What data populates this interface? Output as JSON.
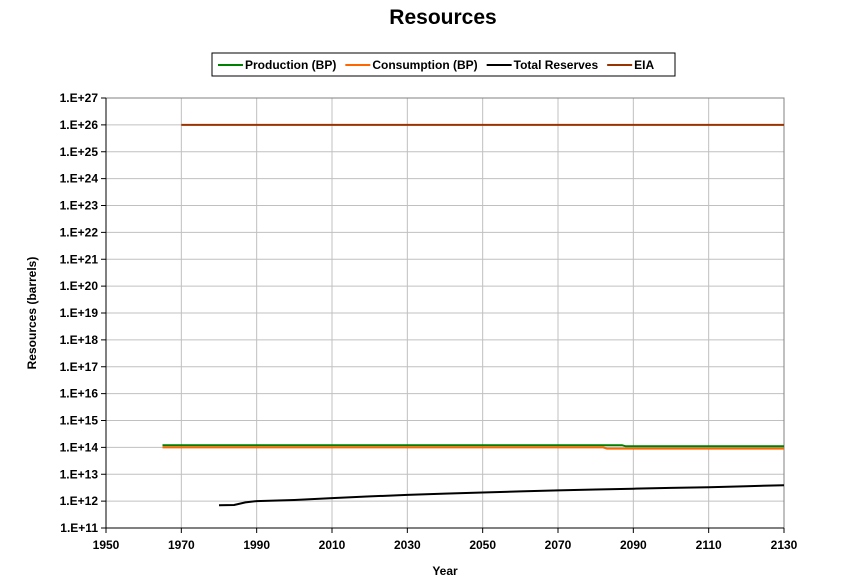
{
  "chart_data": {
    "type": "line",
    "title": "Resources",
    "xlabel": "Year",
    "ylabel": "Resources (barrels)",
    "x_ticks": [
      "1950",
      "1970",
      "1990",
      "2010",
      "2030",
      "2050",
      "2070",
      "2090",
      "2110",
      "2130"
    ],
    "xlim": [
      1950,
      2130
    ],
    "y_scale": "log",
    "ylim": [
      100000000000.0,
      1e+27
    ],
    "y_ticks": [
      "1.E+11",
      "1.E+12",
      "1.E+13",
      "1.E+14",
      "1.E+15",
      "1.E+16",
      "1.E+17",
      "1.E+18",
      "1.E+19",
      "1.E+20",
      "1.E+21",
      "1.E+22",
      "1.E+23",
      "1.E+24",
      "1.E+25",
      "1.E+26",
      "1.E+27"
    ],
    "grid": true,
    "legend_position": "top-center",
    "series": [
      {
        "name": "Production (BP)",
        "color": "#008000",
        "points": [
          [
            1965,
            120000000000000.0
          ],
          [
            2087,
            120000000000000.0
          ],
          [
            2088,
            110000000000000.0
          ],
          [
            2130,
            110000000000000.0
          ]
        ]
      },
      {
        "name": "Consumption (BP)",
        "color": "#ff6600",
        "points": [
          [
            1965,
            100000000000000.0
          ],
          [
            2082,
            100000000000000.0
          ],
          [
            2083,
            90000000000000.0
          ],
          [
            2130,
            90000000000000.0
          ]
        ]
      },
      {
        "name": "Total Reserves",
        "color": "#000000",
        "points": [
          [
            1980,
            700000000000.0
          ],
          [
            1984,
            720000000000.0
          ],
          [
            1987,
            900000000000.0
          ],
          [
            1990,
            1000000000000.0
          ],
          [
            2000,
            1100000000000.0
          ],
          [
            2010,
            1300000000000.0
          ],
          [
            2020,
            1500000000000.0
          ],
          [
            2030,
            1700000000000.0
          ],
          [
            2040,
            1900000000000.0
          ],
          [
            2050,
            2100000000000.0
          ],
          [
            2060,
            2300000000000.0
          ],
          [
            2070,
            2500000000000.0
          ],
          [
            2080,
            2700000000000.0
          ],
          [
            2090,
            2900000000000.0
          ],
          [
            2100,
            3100000000000.0
          ],
          [
            2110,
            3300000000000.0
          ],
          [
            2120,
            3600000000000.0
          ],
          [
            2130,
            3900000000000.0
          ]
        ]
      },
      {
        "name": "EIA",
        "color": "#993300",
        "points": [
          [
            1970,
            1e+26
          ],
          [
            2130,
            1e+26
          ]
        ]
      }
    ]
  }
}
